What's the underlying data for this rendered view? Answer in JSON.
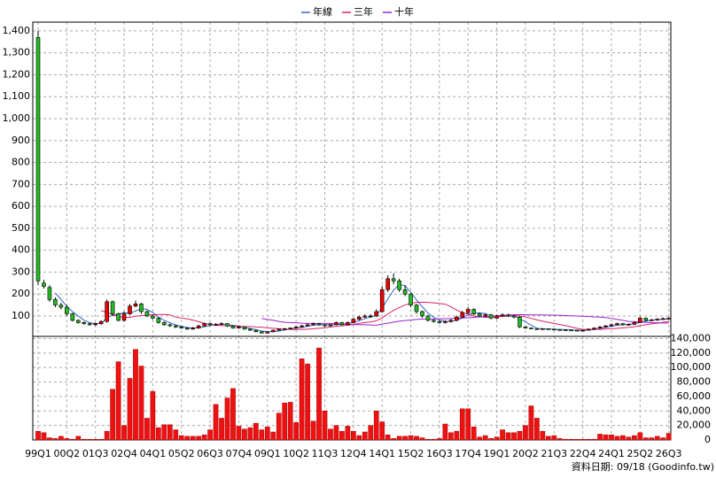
{
  "chart_data": {
    "type": "candlestick",
    "categories": [
      "99Q1",
      null,
      null,
      null,
      null,
      "00Q2",
      null,
      null,
      null,
      null,
      "01Q3",
      null,
      null,
      null,
      null,
      "02Q4",
      null,
      null,
      null,
      null,
      "04Q1",
      null,
      null,
      null,
      null,
      "05Q2",
      null,
      null,
      null,
      null,
      "06Q3",
      null,
      null,
      null,
      null,
      "07Q4",
      null,
      null,
      null,
      null,
      "09Q1",
      null,
      null,
      null,
      null,
      "10Q2",
      null,
      null,
      null,
      null,
      "11Q3",
      null,
      null,
      null,
      null,
      "12Q4",
      null,
      null,
      null,
      null,
      "14Q1",
      null,
      null,
      null,
      null,
      "15Q2",
      null,
      null,
      null,
      null,
      "16Q3",
      null,
      null,
      null,
      null,
      "17Q4",
      null,
      null,
      null,
      null,
      "19Q1",
      null,
      null,
      null,
      null,
      "20Q2",
      null,
      null,
      null,
      null,
      "21Q3",
      null,
      null,
      null,
      null,
      "22Q4",
      null,
      null,
      null,
      null,
      "24Q1",
      null,
      null,
      null,
      null,
      "25Q2",
      null,
      null,
      null,
      null,
      "26Q3"
    ],
    "open": [
      1370,
      250,
      230,
      175,
      150,
      140,
      110,
      80,
      70,
      65,
      60,
      65,
      75,
      165,
      110,
      80,
      110,
      145,
      155,
      120,
      100,
      90,
      70,
      60,
      55,
      50,
      45,
      40,
      45,
      55,
      65,
      60,
      62,
      65,
      55,
      45,
      50,
      40,
      35,
      28,
      22,
      28,
      35,
      40,
      42,
      45,
      50,
      55,
      60,
      65,
      60,
      55,
      60,
      70,
      60,
      70,
      85,
      95,
      100,
      100,
      120,
      220,
      270,
      260,
      220,
      200,
      150,
      120,
      100,
      80,
      75,
      70,
      75,
      80,
      95,
      115,
      130,
      110,
      100,
      105,
      90,
      100,
      105,
      100,
      95,
      50,
      45,
      42,
      40,
      42,
      40,
      38,
      37,
      36,
      35,
      33,
      35,
      40,
      45,
      50,
      55,
      60,
      65,
      60,
      62,
      70,
      90,
      80,
      82,
      85,
      88
    ],
    "high": [
      1400,
      265,
      240,
      185,
      160,
      150,
      115,
      85,
      75,
      70,
      70,
      80,
      175,
      170,
      115,
      120,
      155,
      170,
      160,
      125,
      105,
      95,
      75,
      65,
      60,
      55,
      48,
      50,
      60,
      70,
      70,
      68,
      72,
      68,
      58,
      55,
      52,
      42,
      37,
      30,
      30,
      38,
      43,
      46,
      48,
      54,
      60,
      65,
      70,
      68,
      63,
      64,
      75,
      73,
      75,
      92,
      102,
      108,
      108,
      130,
      235,
      285,
      295,
      270,
      240,
      205,
      155,
      125,
      105,
      85,
      80,
      80,
      86,
      102,
      124,
      140,
      135,
      115,
      112,
      110,
      106,
      112,
      110,
      104,
      100,
      54,
      48,
      45,
      45,
      44,
      42,
      40,
      39,
      38,
      37,
      37,
      43,
      48,
      54,
      59,
      65,
      70,
      68,
      66,
      75,
      97,
      93,
      87,
      90,
      93,
      95
    ],
    "low": [
      240,
      225,
      165,
      140,
      130,
      100,
      75,
      65,
      60,
      55,
      55,
      60,
      70,
      100,
      75,
      75,
      105,
      140,
      110,
      95,
      85,
      65,
      55,
      50,
      45,
      42,
      37,
      38,
      42,
      50,
      55,
      55,
      58,
      50,
      42,
      42,
      37,
      32,
      25,
      20,
      20,
      26,
      33,
      38,
      40,
      42,
      47,
      52,
      56,
      55,
      50,
      52,
      57,
      56,
      57,
      66,
      80,
      90,
      92,
      95,
      115,
      210,
      245,
      210,
      190,
      140,
      110,
      92,
      75,
      70,
      65,
      66,
      70,
      76,
      90,
      108,
      104,
      95,
      95,
      85,
      86,
      96,
      95,
      90,
      45,
      42,
      40,
      38,
      38,
      37,
      36,
      35,
      34,
      33,
      31,
      31,
      33,
      38,
      43,
      48,
      52,
      57,
      56,
      57,
      59,
      67,
      76,
      77,
      78,
      82,
      85
    ],
    "close": [
      260,
      235,
      175,
      150,
      140,
      110,
      80,
      70,
      65,
      60,
      65,
      75,
      165,
      110,
      80,
      110,
      145,
      155,
      120,
      100,
      90,
      70,
      60,
      55,
      50,
      45,
      40,
      45,
      55,
      65,
      60,
      62,
      65,
      55,
      45,
      50,
      40,
      35,
      28,
      22,
      28,
      35,
      40,
      42,
      45,
      50,
      55,
      60,
      65,
      60,
      55,
      60,
      70,
      60,
      70,
      85,
      95,
      100,
      100,
      120,
      220,
      270,
      260,
      220,
      200,
      150,
      120,
      100,
      80,
      75,
      70,
      75,
      80,
      95,
      115,
      130,
      110,
      100,
      105,
      90,
      100,
      105,
      100,
      95,
      50,
      45,
      42,
      40,
      42,
      40,
      38,
      37,
      36,
      35,
      33,
      35,
      40,
      45,
      50,
      55,
      60,
      65,
      60,
      62,
      70,
      90,
      80,
      82,
      85,
      88,
      90
    ],
    "up_color": "#ee0000",
    "down_color": "#22bb22",
    "ylim": [
      7,
      1440
    ],
    "yticks": [
      100,
      200,
      300,
      400,
      500,
      600,
      700,
      800,
      900,
      {
        "value": 1000,
        "label": "1,000"
      },
      {
        "value": 1100,
        "label": "1,100"
      },
      {
        "value": 1200,
        "label": "1,200"
      },
      {
        "value": 1300,
        "label": "1,300"
      },
      {
        "value": 1400,
        "label": "1,400"
      }
    ],
    "grid": true,
    "series": [
      {
        "name": "年線",
        "color": "#3366cc",
        "values": [
          null,
          null,
          null,
          205,
          175,
          144,
          120,
          100,
          81,
          69,
          65,
          66,
          91,
          104,
          108,
          116,
          111,
          123,
          133,
          130,
          116,
          95,
          80,
          69,
          59,
          53,
          48,
          45,
          46,
          51,
          56,
          61,
          63,
          61,
          57,
          54,
          48,
          43,
          38,
          31,
          28,
          28,
          31,
          36,
          41,
          44,
          48,
          53,
          58,
          60,
          60,
          60,
          61,
          61,
          65,
          71,
          78,
          88,
          95,
          104,
          135,
          178,
          218,
          243,
          238,
          208,
          173,
          143,
          113,
          94,
          81,
          75,
          75,
          80,
          91,
          105,
          113,
          114,
          111,
          101,
          99,
          100,
          99,
          100,
          88,
          73,
          58,
          44,
          42,
          41,
          40,
          39,
          38,
          37,
          35,
          35,
          36,
          38,
          43,
          48,
          53,
          58,
          60,
          62,
          64,
          71,
          76,
          81,
          84,
          84,
          86
        ]
      },
      {
        "name": "三年",
        "color": "#dd2266",
        "values": [
          null,
          null,
          null,
          null,
          null,
          null,
          null,
          null,
          null,
          null,
          null,
          124,
          116,
          106,
          98,
          94,
          94,
          99,
          102,
          104,
          106,
          107,
          107,
          105,
          95,
          90,
          87,
          81,
          74,
          66,
          61,
          58,
          56,
          55,
          54,
          53,
          52,
          52,
          50,
          49,
          46,
          44,
          42,
          40,
          39,
          38,
          39,
          40,
          42,
          44,
          46,
          50,
          53,
          55,
          58,
          61,
          66,
          70,
          73,
          78,
          91,
          109,
          126,
          139,
          150,
          158,
          162,
          163,
          162,
          160,
          157,
          154,
          142,
          127,
          115,
          108,
          100,
          96,
          94,
          94,
          96,
          98,
          100,
          102,
          100,
          96,
          89,
          82,
          76,
          71,
          66,
          61,
          56,
          50,
          44,
          39,
          39,
          39,
          39,
          41,
          42,
          44,
          46,
          48,
          51,
          56,
          60,
          64,
          67,
          71,
          74
        ]
      },
      {
        "name": "十年",
        "color": "#9922cc",
        "values": [
          null,
          null,
          null,
          null,
          null,
          null,
          null,
          null,
          null,
          null,
          null,
          null,
          null,
          null,
          null,
          null,
          null,
          null,
          null,
          null,
          null,
          null,
          null,
          null,
          null,
          null,
          null,
          null,
          null,
          null,
          null,
          null,
          null,
          null,
          null,
          null,
          null,
          null,
          null,
          88,
          84,
          80,
          75,
          71,
          70,
          69,
          67,
          66,
          66,
          66,
          66,
          66,
          65,
          64,
          62,
          61,
          60,
          60,
          59,
          58,
          63,
          67,
          72,
          76,
          79,
          81,
          84,
          86,
          86,
          86,
          87,
          87,
          88,
          90,
          91,
          92,
          94,
          96,
          97,
          99,
          101,
          103,
          104,
          106,
          106,
          106,
          105,
          105,
          105,
          104,
          104,
          103,
          102,
          101,
          100,
          99,
          98,
          96,
          95,
          93,
          89,
          84,
          80,
          75,
          74,
          72,
          71,
          69,
          69,
          68,
          68
        ]
      }
    ],
    "volume": {
      "type": "bar",
      "color": "#ee1111",
      "values": [
        12000,
        10000,
        3000,
        2000,
        5000,
        2000,
        1000,
        5000,
        1000,
        1000,
        1000,
        1000,
        12000,
        70000,
        108000,
        20000,
        85000,
        125000,
        102000,
        30000,
        67000,
        17000,
        21000,
        21000,
        14000,
        6000,
        5000,
        5000,
        5000,
        7000,
        14000,
        49000,
        30000,
        58000,
        71000,
        19000,
        15000,
        17000,
        23000,
        14000,
        18000,
        11000,
        37000,
        51000,
        52000,
        24000,
        112000,
        105000,
        26000,
        127000,
        40000,
        15000,
        20000,
        12000,
        19000,
        12000,
        6000,
        11000,
        20000,
        40000,
        25000,
        7000,
        2000,
        5000,
        5000,
        6000,
        5000,
        3000,
        1000,
        1000,
        2000,
        22000,
        10000,
        12000,
        43000,
        43000,
        18000,
        4000,
        6000,
        2000,
        4000,
        14000,
        10000,
        10000,
        12000,
        20000,
        47000,
        30000,
        12000,
        5000,
        6000,
        2000,
        1000,
        1000,
        1000,
        1000,
        1000,
        1000,
        8000,
        7000,
        7000,
        5000,
        6000,
        4000,
        6000,
        10000,
        3000,
        3000,
        5000,
        3000,
        9000
      ],
      "ylim": [
        0,
        143000
      ],
      "yticks": [
        0,
        {
          "value": 20000,
          "label": "20,000"
        },
        {
          "value": 40000,
          "label": "40,000"
        },
        {
          "value": 60000,
          "label": "60,000"
        },
        {
          "value": 80000,
          "label": "80,000"
        },
        {
          "value": 100000,
          "label": "100,000"
        },
        {
          "value": 120000,
          "label": "120,000"
        },
        {
          "value": 140000,
          "label": "140,000"
        }
      ]
    },
    "footer": "資料日期: 09/18  (Goodinfo.tw)"
  }
}
